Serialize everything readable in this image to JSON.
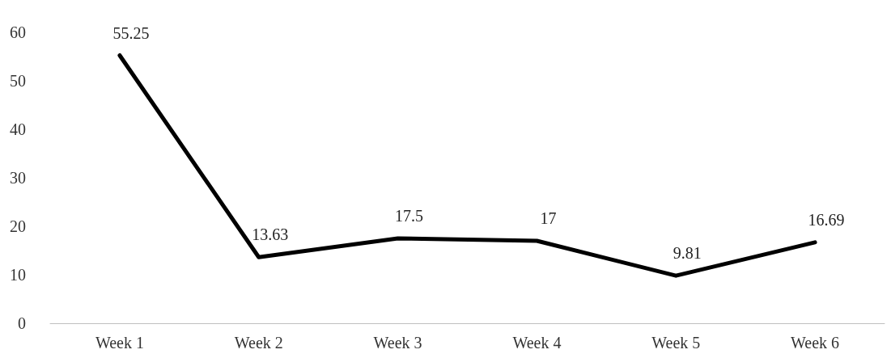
{
  "chart_data": {
    "type": "line",
    "categories": [
      "Week 1",
      "Week 2",
      "Week 3",
      "Week 4",
      "Week 5",
      "Week 6"
    ],
    "series": [
      {
        "color": "#000000",
        "values": [
          55.25,
          13.63,
          17.5,
          17,
          9.81,
          16.69
        ]
      }
    ],
    "ylim": [
      0,
      60
    ],
    "yticks": [
      0,
      10,
      20,
      30,
      40,
      50,
      60
    ],
    "grid": false,
    "marker": "none",
    "line_style": "solid",
    "data_labels": true
  }
}
